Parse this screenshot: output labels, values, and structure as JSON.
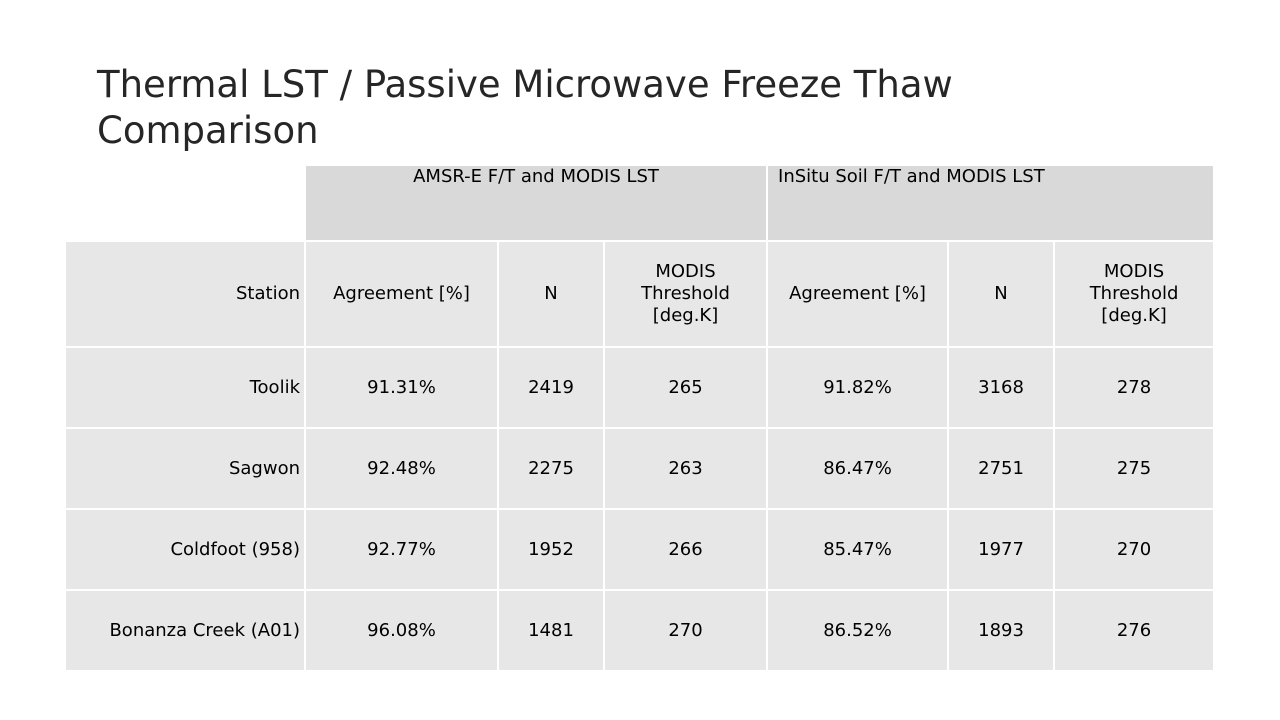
{
  "slide": {
    "title_line1": "Thermal LST / Passive Microwave Freeze Thaw",
    "title_line2": "Comparison"
  },
  "table": {
    "group_headers": {
      "amsr": "AMSR-E F/T and MODIS LST",
      "insitu": "InSitu Soil F/T and MODIS LST"
    },
    "column_headers": {
      "station": "Station",
      "amsr_agreement": "Agreement [%]",
      "amsr_n": "N",
      "amsr_threshold": "MODIS Threshold [deg.K]",
      "insitu_agreement": "Agreement [%]",
      "insitu_n": "N",
      "insitu_threshold": "MODIS Threshold [deg.K]"
    },
    "rows": [
      {
        "station": "Toolik",
        "amsr_agreement": "91.31%",
        "amsr_n": "2419",
        "amsr_threshold": "265",
        "insitu_agreement": "91.82%",
        "insitu_n": "3168",
        "insitu_threshold": "278"
      },
      {
        "station": "Sagwon",
        "amsr_agreement": "92.48%",
        "amsr_n": "2275",
        "amsr_threshold": "263",
        "insitu_agreement": "86.47%",
        "insitu_n": "2751",
        "insitu_threshold": "275"
      },
      {
        "station": "Coldfoot (958)",
        "amsr_agreement": "92.77%",
        "amsr_n": "1952",
        "amsr_threshold": "266",
        "insitu_agreement": "85.47%",
        "insitu_n": "1977",
        "insitu_threshold": "270"
      },
      {
        "station": "Bonanza Creek (A01)",
        "amsr_agreement": "96.08%",
        "amsr_n": "1481",
        "amsr_threshold": "270",
        "insitu_agreement": "86.52%",
        "insitu_n": "1893",
        "insitu_threshold": "276"
      }
    ]
  },
  "colors": {
    "header_fill": "#d9d9d9",
    "cell_fill": "#e7e7e7",
    "border": "#ffffff",
    "title_text": "#262626"
  }
}
